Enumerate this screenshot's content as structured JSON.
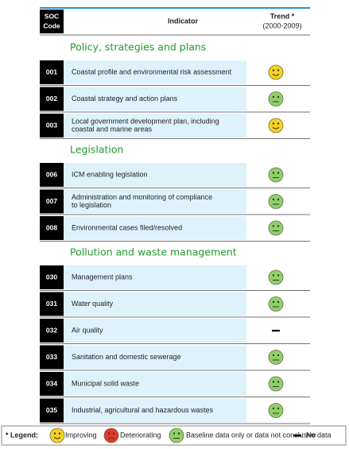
{
  "header": {
    "code": [
      "SOC",
      "Code"
    ],
    "indicator": "Indicator",
    "trend": [
      "Trend *",
      "(2000-2009)"
    ]
  },
  "sections": [
    {
      "title": "Policy, strategies and plans",
      "rows": [
        {
          "code": "001",
          "indicator": [
            "Coastal profile and environmental risk assessment"
          ],
          "trend": 0
        },
        {
          "code": "002",
          "indicator": [
            "Coastal strategy and action plans"
          ],
          "trend": 2
        },
        {
          "code": "003",
          "indicator": [
            "Local government development plan, including",
            "coastal and marine areas"
          ],
          "trend": 0
        }
      ]
    },
    {
      "title": "Legislation",
      "rows": [
        {
          "code": "006",
          "indicator": [
            "ICM enabling legislation"
          ],
          "trend": 2
        },
        {
          "code": "007",
          "indicator": [
            "Administration and monitoring of compliance",
            "to legislation"
          ],
          "trend": 2
        },
        {
          "code": "008",
          "indicator": [
            "Environmental cases filed/resolved"
          ],
          "trend": 2
        }
      ]
    },
    {
      "title": "Pollution and waste management",
      "rows": [
        {
          "code": "030",
          "indicator": [
            "Management plans"
          ],
          "trend": 2
        },
        {
          "code": "031",
          "indicator": [
            "Water quality"
          ],
          "trend": 2
        },
        {
          "code": "032",
          "indicator": [
            "Air quality"
          ],
          "trend": 3
        },
        {
          "code": "033",
          "indicator": [
            "Sanitation and domestic sewerage"
          ],
          "trend": 2
        },
        {
          "code": "034",
          "indicator": [
            "Municipal solid waste"
          ],
          "trend": 2
        },
        {
          "code": "035",
          "indicator": [
            "Industrial, agricultural and hazardous wastes"
          ],
          "trend": 2
        }
      ]
    }
  ],
  "legend": {
    "label": "* Legend:",
    "items": [
      {
        "label": "Improving",
        "type": "face",
        "color": "#f7d21e",
        "mouth": "smile"
      },
      {
        "label": "Deteriorating",
        "type": "face",
        "color": "#e8352b",
        "mouth": "frown"
      },
      {
        "label": "Baseline data only or data not conclusive",
        "type": "face",
        "color": "#8fd06a",
        "mouth": "flat"
      },
      {
        "label": "No data",
        "type": "dash",
        "color": "#000000"
      }
    ]
  }
}
